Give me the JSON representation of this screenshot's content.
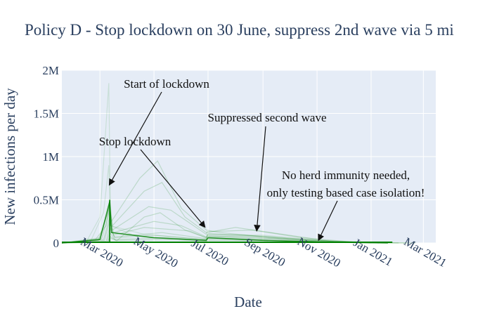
{
  "chart_data": {
    "type": "line",
    "title": "Policy D - Stop lockdown on 30 June, suppress 2nd wave via 5 mi",
    "xlabel": "Date",
    "ylabel": "New infections per day",
    "x_range": [
      "2020-01-18",
      "2021-03-15"
    ],
    "ylim": [
      0,
      2000000
    ],
    "x_ticks": [
      {
        "date": "2020-03-01",
        "label": "Mar 2020"
      },
      {
        "date": "2020-05-01",
        "label": "May 2020"
      },
      {
        "date": "2020-07-01",
        "label": "Jul 2020"
      },
      {
        "date": "2020-09-01",
        "label": "Sep 2020"
      },
      {
        "date": "2020-11-01",
        "label": "Nov 2020"
      },
      {
        "date": "2021-01-01",
        "label": "Jan 2021"
      },
      {
        "date": "2021-03-01",
        "label": "Mar 2021"
      }
    ],
    "y_ticks": [
      {
        "value": 0,
        "label": "0"
      },
      {
        "value": 500000,
        "label": "0.5M"
      },
      {
        "value": 1000000,
        "label": "1M"
      },
      {
        "value": 1500000,
        "label": "1.5M"
      },
      {
        "value": 2000000,
        "label": "2M"
      }
    ],
    "grid": true,
    "series_color": "#008000",
    "background": "#e5ecf6",
    "series": [
      {
        "values": [
          [
            "2020-01-18",
            0
          ],
          [
            "2020-02-15",
            20000
          ],
          [
            "2020-03-01",
            300000
          ],
          [
            "2020-03-11",
            1850000
          ],
          [
            "2020-03-13",
            200000
          ],
          [
            "2020-04-10",
            80000
          ],
          [
            "2020-06-29",
            30000
          ],
          [
            "2020-06-30",
            80000
          ],
          [
            "2020-08-15",
            70000
          ],
          [
            "2020-11-01",
            15000
          ],
          [
            "2021-01-01",
            0
          ]
        ]
      },
      {
        "values": [
          [
            "2020-01-18",
            0
          ],
          [
            "2020-02-20",
            30000
          ],
          [
            "2020-03-05",
            350000
          ],
          [
            "2020-03-11",
            900000
          ],
          [
            "2020-03-13",
            200000
          ],
          [
            "2020-04-20",
            100000
          ],
          [
            "2020-06-29",
            40000
          ],
          [
            "2020-06-30",
            90000
          ],
          [
            "2020-09-01",
            90000
          ],
          [
            "2020-11-15",
            20000
          ],
          [
            "2021-01-10",
            0
          ]
        ]
      },
      {
        "values": [
          [
            "2020-01-18",
            0
          ],
          [
            "2020-02-25",
            40000
          ],
          [
            "2020-03-08",
            200000
          ],
          [
            "2020-03-12",
            450000
          ],
          [
            "2020-03-14",
            250000
          ],
          [
            "2020-04-15",
            750000
          ],
          [
            "2020-05-05",
            950000
          ],
          [
            "2020-06-01",
            400000
          ],
          [
            "2020-06-29",
            150000
          ],
          [
            "2020-07-15",
            120000
          ],
          [
            "2020-09-15",
            60000
          ],
          [
            "2020-12-15",
            5000
          ]
        ]
      },
      {
        "values": [
          [
            "2020-01-18",
            0
          ],
          [
            "2020-02-28",
            30000
          ],
          [
            "2020-03-10",
            350000
          ],
          [
            "2020-03-12",
            500000
          ],
          [
            "2020-03-15",
            200000
          ],
          [
            "2020-04-20",
            600000
          ],
          [
            "2020-05-10",
            700000
          ],
          [
            "2020-06-05",
            300000
          ],
          [
            "2020-06-29",
            120000
          ],
          [
            "2020-08-01",
            180000
          ],
          [
            "2020-09-10",
            120000
          ],
          [
            "2020-11-20",
            15000
          ]
        ]
      },
      {
        "values": [
          [
            "2020-01-18",
            0
          ],
          [
            "2020-03-01",
            60000
          ],
          [
            "2020-03-12",
            430000
          ],
          [
            "2020-03-15",
            150000
          ],
          [
            "2020-04-25",
            420000
          ],
          [
            "2020-05-20",
            380000
          ],
          [
            "2020-06-29",
            100000
          ],
          [
            "2020-06-30",
            130000
          ],
          [
            "2020-08-20",
            150000
          ],
          [
            "2020-10-15",
            60000
          ],
          [
            "2020-12-20",
            5000
          ]
        ]
      },
      {
        "values": [
          [
            "2020-01-18",
            0
          ],
          [
            "2020-03-03",
            50000
          ],
          [
            "2020-03-12",
            380000
          ],
          [
            "2020-03-16",
            120000
          ],
          [
            "2020-05-01",
            250000
          ],
          [
            "2020-06-01",
            200000
          ],
          [
            "2020-06-29",
            70000
          ],
          [
            "2020-07-01",
            100000
          ],
          [
            "2020-09-01",
            80000
          ],
          [
            "2020-11-01",
            30000
          ],
          [
            "2021-01-15",
            2000
          ]
        ]
      },
      {
        "values": [
          [
            "2020-01-18",
            0
          ],
          [
            "2020-03-05",
            40000
          ],
          [
            "2020-03-12",
            300000
          ],
          [
            "2020-03-16",
            90000
          ],
          [
            "2020-04-20",
            180000
          ],
          [
            "2020-06-10",
            140000
          ],
          [
            "2020-06-29",
            60000
          ],
          [
            "2020-07-01",
            110000
          ],
          [
            "2020-08-10",
            90000
          ],
          [
            "2020-10-20",
            35000
          ],
          [
            "2021-01-01",
            3000
          ]
        ]
      },
      {
        "values": [
          [
            "2020-01-18",
            0
          ],
          [
            "2020-03-06",
            30000
          ],
          [
            "2020-03-12",
            250000
          ],
          [
            "2020-03-17",
            70000
          ],
          [
            "2020-05-10",
            120000
          ],
          [
            "2020-06-29",
            50000
          ],
          [
            "2020-07-02",
            70000
          ],
          [
            "2020-09-10",
            50000
          ],
          [
            "2020-12-01",
            8000
          ],
          [
            "2021-02-01",
            0
          ]
        ]
      },
      {
        "values": [
          [
            "2020-01-18",
            0
          ],
          [
            "2020-03-08",
            20000
          ],
          [
            "2020-03-12",
            180000
          ],
          [
            "2020-03-18",
            60000
          ],
          [
            "2020-04-30",
            90000
          ],
          [
            "2020-06-29",
            40000
          ],
          [
            "2020-07-01",
            60000
          ],
          [
            "2020-08-20",
            45000
          ],
          [
            "2020-11-10",
            12000
          ],
          [
            "2021-01-20",
            0
          ]
        ]
      },
      {
        "values": [
          [
            "2020-01-18",
            0
          ],
          [
            "2020-03-09",
            15000
          ],
          [
            "2020-03-12",
            120000
          ],
          [
            "2020-03-18",
            40000
          ],
          [
            "2020-05-15",
            60000
          ],
          [
            "2020-06-29",
            30000
          ],
          [
            "2020-07-01",
            45000
          ],
          [
            "2020-09-01",
            35000
          ],
          [
            "2020-11-20",
            8000
          ],
          [
            "2021-02-10",
            0
          ]
        ]
      },
      {
        "values": [
          [
            "2020-01-18",
            0
          ],
          [
            "2020-03-10",
            10000
          ],
          [
            "2020-03-12",
            80000
          ],
          [
            "2020-03-19",
            30000
          ],
          [
            "2020-05-20",
            40000
          ],
          [
            "2020-06-29",
            20000
          ],
          [
            "2020-07-01",
            30000
          ],
          [
            "2020-09-10",
            25000
          ],
          [
            "2020-12-01",
            5000
          ],
          [
            "2021-02-20",
            0
          ]
        ]
      },
      {
        "values": [
          [
            "2020-01-18",
            0
          ],
          [
            "2020-03-10",
            8000
          ],
          [
            "2020-03-12",
            60000
          ],
          [
            "2020-03-20",
            25000
          ],
          [
            "2020-04-20",
            300000
          ],
          [
            "2020-05-08",
            350000
          ],
          [
            "2020-06-05",
            150000
          ],
          [
            "2020-06-29",
            60000
          ],
          [
            "2020-07-01",
            80000
          ],
          [
            "2020-08-25",
            70000
          ],
          [
            "2020-11-01",
            20000
          ],
          [
            "2021-01-10",
            0
          ]
        ]
      }
    ],
    "annotations": [
      {
        "text": "Start of lockdown",
        "point": {
          "date": "2020-03-12",
          "value": 680000
        }
      },
      {
        "text": "Stop lockdown",
        "point": {
          "date": "2020-06-27",
          "value": 190000
        }
      },
      {
        "text": "Suppressed second wave",
        "point": {
          "date": "2020-08-25",
          "value": 150000
        }
      },
      {
        "text_lines": [
          "No herd immunity needed,",
          "only testing based case isolation!"
        ],
        "point": {
          "date": "2020-11-03",
          "value": 40000
        }
      }
    ]
  }
}
